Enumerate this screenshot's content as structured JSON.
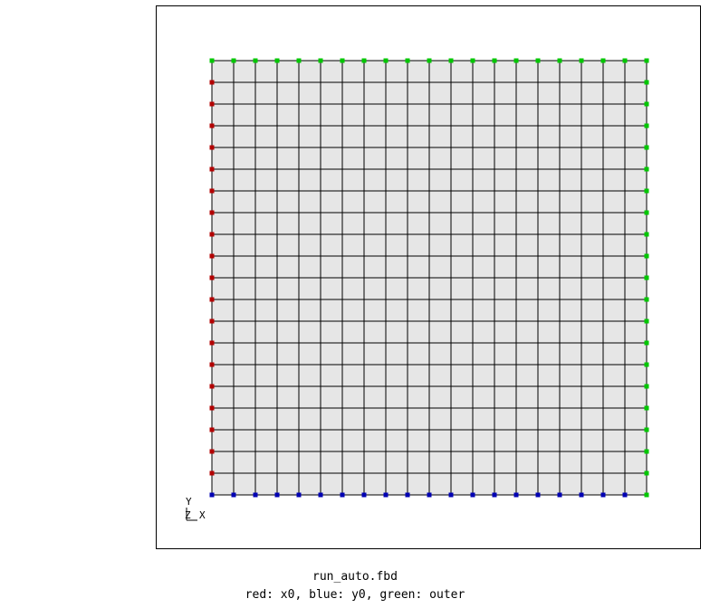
{
  "mesh": {
    "divisions": 20,
    "fill_color": "#e6e6e6",
    "line_color": "#000000",
    "node_groups": {
      "x0": {
        "color": "#b40000"
      },
      "y0": {
        "color": "#0000b4"
      },
      "outer": {
        "color": "#00c800"
      }
    }
  },
  "axes": {
    "y": "Y",
    "z": "Z",
    "x": "X"
  },
  "caption": {
    "file": "run_auto.fbd",
    "legend": "red: x0, blue: y0, green: outer"
  }
}
